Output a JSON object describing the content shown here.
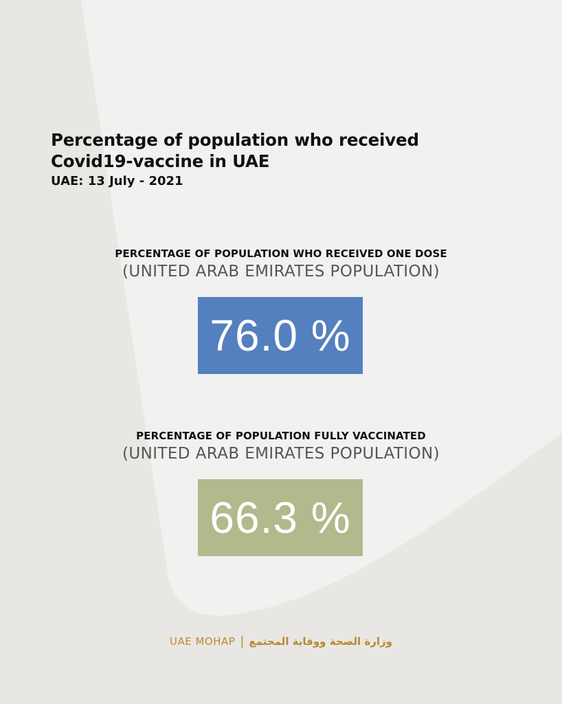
{
  "title_line1": "Percentage of population who received",
  "title_line2": "Covid19-vaccine in UAE",
  "subtitle": "UAE: 13 July - 2021",
  "stats": [
    {
      "heading": "PERCENTAGE OF POPULATION WHO RECEIVED ONE DOSE",
      "sub": "(UNITED ARAB EMIRATES POPULATION)",
      "value": "76.0 %",
      "color": "#5480bf"
    },
    {
      "heading": "PERCENTAGE OF POPULATION FULLY VACCINATED",
      "sub": "(UNITED ARAB EMIRATES POPULATION)",
      "value": "66.3 %",
      "color": "#b2b98c"
    }
  ],
  "footer": {
    "en": "UAE MOHAP",
    "separator": "|",
    "ar": "وزارة الصحة ووقاية المجتمع"
  },
  "colors": {
    "background": "#e9e7e4",
    "panel": "#f1f1f0",
    "brand_gold": "#b8892e"
  }
}
